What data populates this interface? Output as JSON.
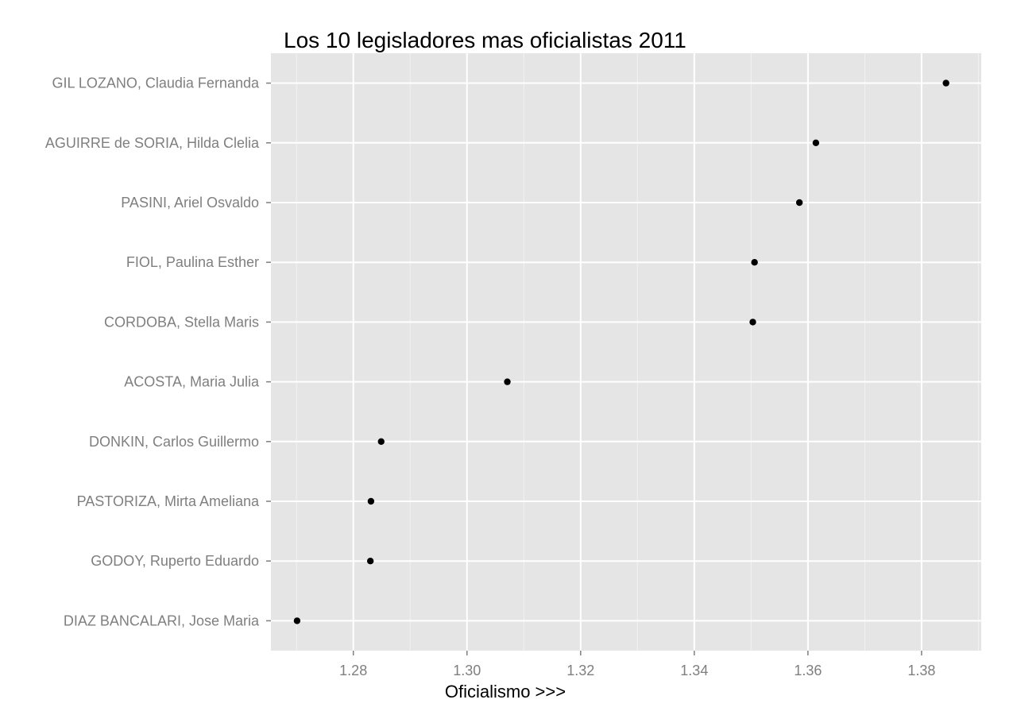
{
  "chart_data": {
    "type": "scatter",
    "title": "Los 10 legisladores mas oficialistas 2011",
    "xlabel": "Oficialismo >>>",
    "ylabel": "",
    "xlim": [
      1.2655,
      1.3905
    ],
    "x_ticks": [
      "1.28",
      "1.30",
      "1.32",
      "1.34",
      "1.36",
      "1.38"
    ],
    "x_tick_values": [
      1.28,
      1.3,
      1.32,
      1.34,
      1.36,
      1.38
    ],
    "grid": true,
    "categories": [
      "GIL LOZANO, Claudia Fernanda",
      "AGUIRRE de SORIA, Hilda Clelia",
      "PASINI, Ariel Osvaldo",
      "FIOL, Paulina Esther",
      "CORDOBA, Stella Maris",
      "ACOSTA, Maria Julia",
      "DONKIN, Carlos Guillermo",
      "PASTORIZA, Mirta Ameliana",
      "GODOY, Ruperto Eduardo",
      "DIAZ BANCALARI, Jose Maria"
    ],
    "values": [
      1.3843,
      1.3614,
      1.3585,
      1.3506,
      1.3503,
      1.3071,
      1.2849,
      1.2831,
      1.283,
      1.2701
    ]
  },
  "colors": {
    "panel_background": "#e5e5e5",
    "grid_major": "#ffffff",
    "grid_minor": "#f2f2f2",
    "point": "#000000",
    "tick_text": "#7f7f7f"
  }
}
